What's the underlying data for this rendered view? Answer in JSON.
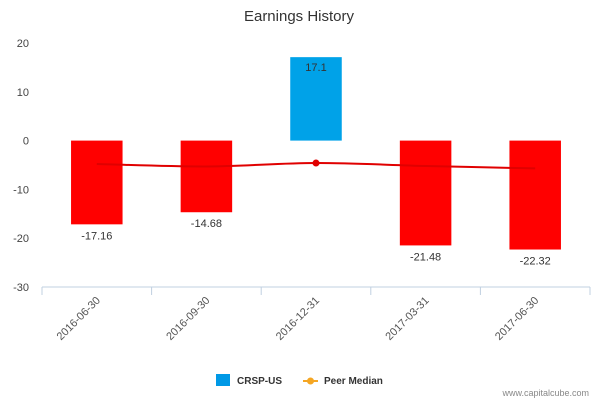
{
  "chart_data": {
    "type": "bar",
    "title": "Earnings History",
    "xlabel": "",
    "ylabel": "",
    "ylim": [
      -30,
      20
    ],
    "yticks": [
      20,
      10,
      0,
      -10,
      -20,
      -30
    ],
    "categories": [
      "2016-06-30",
      "2016-09-30",
      "2016-12-31",
      "2017-03-31",
      "2017-06-30"
    ],
    "series": [
      {
        "name": "CRSP-US",
        "kind": "bar",
        "values": [
          -17.16,
          -14.68,
          17.1,
          -21.48,
          -22.32
        ],
        "data_labels": [
          "-17.16",
          "-14.68",
          "17.1",
          "-21.48",
          "-22.32"
        ],
        "positive_color": "#00A2E8",
        "negative_color": "#FF0000"
      },
      {
        "name": "Peer Median",
        "kind": "line",
        "values": [
          -4.8,
          -5.3,
          -4.6,
          -5.2,
          -5.7
        ],
        "color": "#E00000",
        "legend_color": "#F5A623",
        "highlight_index": 2
      }
    ],
    "legend": [
      {
        "label": "CRSP-US",
        "color": "#0099E6",
        "marker": "square"
      },
      {
        "label": "Peer Median",
        "color": "#F5A623",
        "marker": "line-dot"
      }
    ],
    "legend_position": "bottom-center",
    "grid": false
  },
  "credit": "www.capitalcube.com"
}
